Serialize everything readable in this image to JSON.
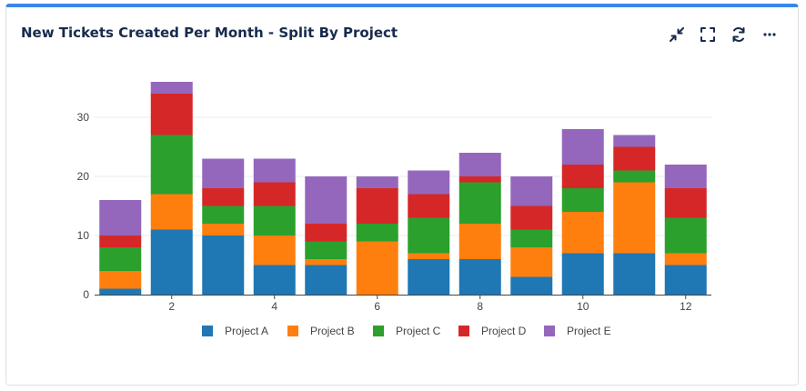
{
  "widget": {
    "title": "New Tickets Created Per Month - Split By Project",
    "toolbar": [
      {
        "icon": "minimize-icon"
      },
      {
        "icon": "fullscreen-icon"
      },
      {
        "icon": "refresh-icon"
      },
      {
        "icon": "more-options-icon"
      }
    ]
  },
  "chart_data": {
    "type": "bar",
    "stacked": true,
    "title": "",
    "xlabel": "",
    "ylabel": "",
    "categories": [
      1,
      2,
      3,
      4,
      5,
      6,
      7,
      8,
      9,
      10,
      11,
      12
    ],
    "x_tick_labels": [
      "2",
      "4",
      "6",
      "8",
      "10",
      "12"
    ],
    "y_ticks": [
      0,
      10,
      20,
      30
    ],
    "ylim": [
      0,
      37
    ],
    "grid": true,
    "legend_position": "bottom",
    "series": [
      {
        "name": "Project A",
        "color": "#1f77b4",
        "values": [
          1,
          11,
          10,
          5,
          5,
          0,
          6,
          6,
          3,
          7,
          7,
          5
        ]
      },
      {
        "name": "Project B",
        "color": "#ff7f0e",
        "values": [
          3,
          6,
          2,
          5,
          1,
          9,
          1,
          6,
          5,
          7,
          12,
          2
        ]
      },
      {
        "name": "Project C",
        "color": "#2ca02c",
        "values": [
          4,
          10,
          3,
          5,
          3,
          3,
          6,
          7,
          3,
          4,
          2,
          6
        ]
      },
      {
        "name": "Project D",
        "color": "#d62728",
        "values": [
          2,
          7,
          3,
          4,
          3,
          6,
          4,
          1,
          4,
          4,
          4,
          5
        ]
      },
      {
        "name": "Project E",
        "color": "#9467bd",
        "values": [
          6,
          2,
          5,
          4,
          8,
          2,
          4,
          4,
          5,
          6,
          2,
          4
        ]
      }
    ]
  }
}
